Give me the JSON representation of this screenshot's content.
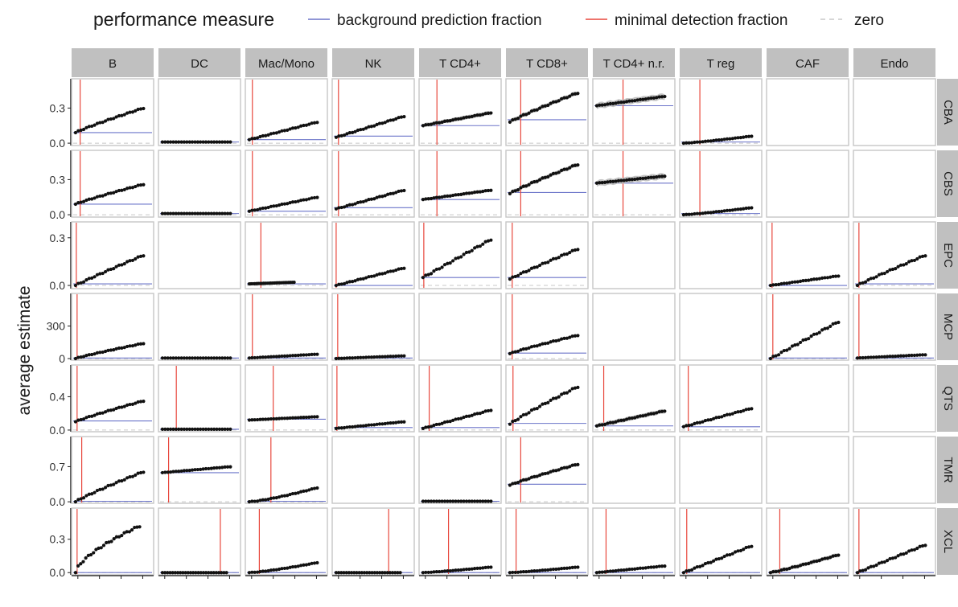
{
  "legend": {
    "title": "performance measure",
    "items": [
      {
        "label": "background prediction fraction",
        "color": "#6b74c9",
        "style": "solid"
      },
      {
        "label": "minimal detection fraction",
        "color": "#e8473c",
        "style": "solid"
      },
      {
        "label": "zero",
        "color": "#c8c8c8",
        "style": "dashed"
      }
    ]
  },
  "colors": {
    "strip_bg": "#c0c0c0",
    "panel_border": "#c6c6c6",
    "background_line": "#6b74c9",
    "detection_line": "#e8473c",
    "zero_line": "#c8c8c8",
    "points": "#111111",
    "ribbon": "#bdbdbd"
  },
  "chart_data": {
    "type": "scatter",
    "ylabel": "average estimate",
    "columns": [
      "B",
      "DC",
      "Mac/Mono",
      "NK",
      "T CD4+",
      "T CD8+",
      "T CD4+ n.r.",
      "T reg",
      "CAF",
      "Endo"
    ],
    "x_range": [
      0,
      1
    ],
    "rows": [
      {
        "name": "CBA",
        "yticks": [
          "0.0",
          "0.3"
        ],
        "tick_values": [
          0,
          0.3
        ],
        "ylim": [
          -0.02,
          0.55
        ],
        "panels": [
          {
            "col": "B",
            "bg": 0.09,
            "det": 0.08,
            "start": 0.09,
            "end": 0.3,
            "curve": 0.9,
            "x_end": 0.9,
            "ribbon": 0.006
          },
          {
            "col": "DC",
            "bg": 0.01,
            "start": 0.01,
            "end": 0.01,
            "x_end": 0.9,
            "ribbon": 0.003
          },
          {
            "col": "Mac/Mono",
            "bg": 0.03,
            "det": 0.06,
            "start": 0.03,
            "end": 0.18,
            "curve": 1.0,
            "x_end": 0.9,
            "ribbon": 0.005
          },
          {
            "col": "NK",
            "bg": 0.06,
            "det": 0.05,
            "start": 0.05,
            "end": 0.23,
            "curve": 1.0,
            "x_end": 0.9,
            "ribbon": 0.012
          },
          {
            "col": "T CD4+",
            "bg": 0.15,
            "det": 0.2,
            "start": 0.15,
            "end": 0.26,
            "curve": 1.0,
            "x_end": 0.9,
            "ribbon": 0.02
          },
          {
            "col": "T CD8+",
            "bg": 0.2,
            "det": 0.16,
            "start": 0.18,
            "end": 0.43,
            "curve": 0.9,
            "x_end": 0.9,
            "ribbon": 0.02
          },
          {
            "col": "T CD4+ n.r.",
            "bg": 0.32,
            "det": 0.36,
            "start": 0.32,
            "end": 0.4,
            "curve": 1.0,
            "x_end": 0.9,
            "ribbon": 0.03
          },
          {
            "col": "T reg",
            "bg": 0.01,
            "det": 0.23,
            "start": 0.0,
            "end": 0.06,
            "curve": 1.2,
            "x_end": 0.9,
            "ribbon": 0.006
          }
        ]
      },
      {
        "name": "CBS",
        "yticks": [
          "0.0",
          "0.3"
        ],
        "tick_values": [
          0,
          0.3
        ],
        "ylim": [
          -0.02,
          0.55
        ],
        "panels": [
          {
            "col": "B",
            "bg": 0.09,
            "det": 0.08,
            "start": 0.09,
            "end": 0.26,
            "curve": 0.9,
            "x_end": 0.9,
            "ribbon": 0.006
          },
          {
            "col": "DC",
            "bg": 0.01,
            "start": 0.01,
            "end": 0.01,
            "x_end": 0.9,
            "ribbon": 0.003
          },
          {
            "col": "Mac/Mono",
            "bg": 0.03,
            "det": 0.06,
            "start": 0.03,
            "end": 0.15,
            "curve": 1.0,
            "x_end": 0.9,
            "ribbon": 0.005
          },
          {
            "col": "NK",
            "bg": 0.06,
            "det": 0.05,
            "start": 0.05,
            "end": 0.21,
            "curve": 1.0,
            "x_end": 0.9,
            "ribbon": 0.012
          },
          {
            "col": "T CD4+",
            "bg": 0.13,
            "det": 0.2,
            "start": 0.13,
            "end": 0.21,
            "curve": 1.0,
            "x_end": 0.9,
            "ribbon": 0.015
          },
          {
            "col": "T CD8+",
            "bg": 0.19,
            "det": 0.16,
            "start": 0.18,
            "end": 0.43,
            "curve": 0.9,
            "x_end": 0.9,
            "ribbon": 0.02
          },
          {
            "col": "T CD4+ n.r.",
            "bg": 0.27,
            "det": 0.36,
            "start": 0.27,
            "end": 0.33,
            "curve": 1.0,
            "x_end": 0.9,
            "ribbon": 0.03
          },
          {
            "col": "T reg",
            "bg": 0.01,
            "det": 0.23,
            "start": 0.0,
            "end": 0.06,
            "curve": 1.2,
            "x_end": 0.9,
            "ribbon": 0.006
          }
        ]
      },
      {
        "name": "EPC",
        "yticks": [
          "0.0",
          "0.3"
        ],
        "tick_values": [
          0,
          0.3
        ],
        "ylim": [
          -0.02,
          0.4
        ],
        "panels": [
          {
            "col": "B",
            "bg": 0.01,
            "det": 0.03,
            "start": 0.0,
            "end": 0.19,
            "curve": 0.95,
            "x_end": 0.9,
            "ribbon": 0.004
          },
          {
            "col": "Mac/Mono",
            "bg": 0.01,
            "det": 0.17,
            "start": 0.01,
            "end": 0.02,
            "curve": 1.0,
            "x_end": 0.6,
            "ribbon": 0.003
          },
          {
            "col": "NK",
            "bg": 0.0,
            "det": 0.02,
            "start": 0.0,
            "end": 0.11,
            "curve": 1.0,
            "x_end": 0.9,
            "ribbon": 0.004
          },
          {
            "col": "T CD4+",
            "bg": 0.05,
            "det": 0.03,
            "start": 0.05,
            "end": 0.29,
            "curve": 1.0,
            "x_end": 0.9,
            "ribbon": 0.006
          },
          {
            "col": "T CD8+",
            "bg": 0.05,
            "det": 0.05,
            "start": 0.04,
            "end": 0.23,
            "curve": 0.95,
            "x_end": 0.9,
            "ribbon": 0.006
          },
          {
            "col": "CAF",
            "bg": 0.0,
            "det": 0.04,
            "start": 0.0,
            "end": 0.06,
            "curve": 1.0,
            "x_end": 0.9,
            "ribbon": 0.003
          },
          {
            "col": "Endo",
            "bg": 0.01,
            "det": 0.04,
            "start": 0.0,
            "end": 0.19,
            "curve": 0.95,
            "x_end": 0.9,
            "ribbon": 0.004
          }
        ]
      },
      {
        "name": "MCP",
        "yticks": [
          "0",
          "300"
        ],
        "tick_values": [
          0,
          300
        ],
        "ylim": [
          -15,
          600
        ],
        "panels": [
          {
            "col": "B",
            "bg": 5,
            "det": 0.04,
            "start": 0,
            "end": 140,
            "curve": 0.9,
            "x_end": 0.9,
            "ribbon": 3
          },
          {
            "col": "DC",
            "bg": 5,
            "start": 5,
            "end": 5,
            "x_end": 0.9,
            "ribbon": 2
          },
          {
            "col": "Mac/Mono",
            "bg": 5,
            "det": 0.06,
            "start": 5,
            "end": 40,
            "curve": 1.0,
            "x_end": 0.9,
            "ribbon": 3
          },
          {
            "col": "NK",
            "bg": 5,
            "det": 0.04,
            "start": 0,
            "end": 25,
            "curve": 1.0,
            "x_end": 0.9,
            "ribbon": 2
          },
          {
            "col": "T CD8+",
            "bg": 50,
            "det": 0.05,
            "start": 45,
            "end": 215,
            "curve": 0.9,
            "x_end": 0.9,
            "ribbon": 6
          },
          {
            "col": "CAF",
            "bg": 5,
            "det": 0.05,
            "start": 0,
            "end": 340,
            "curve": 1.0,
            "x_end": 0.9,
            "ribbon": 6
          },
          {
            "col": "Endo",
            "bg": 5,
            "det": 0.04,
            "start": 5,
            "end": 35,
            "curve": 1.0,
            "x_end": 0.9,
            "ribbon": 3
          }
        ]
      },
      {
        "name": "QTS",
        "yticks": [
          "0.0",
          "0.4"
        ],
        "tick_values": [
          0,
          0.4
        ],
        "ylim": [
          -0.02,
          0.78
        ],
        "panels": [
          {
            "col": "B",
            "bg": 0.11,
            "det": 0.04,
            "start": 0.1,
            "end": 0.35,
            "curve": 0.9,
            "x_end": 0.9,
            "ribbon": 0.008
          },
          {
            "col": "DC",
            "bg": 0.01,
            "det": 0.2,
            "start": 0.01,
            "end": 0.01,
            "x_end": 0.9,
            "ribbon": 0.004
          },
          {
            "col": "Mac/Mono",
            "bg": 0.13,
            "det": 0.33,
            "start": 0.12,
            "end": 0.16,
            "curve": 1.0,
            "x_end": 0.9,
            "ribbon": 0.02
          },
          {
            "col": "NK",
            "bg": 0.03,
            "det": 0.03,
            "start": 0.02,
            "end": 0.1,
            "curve": 1.0,
            "x_end": 0.9,
            "ribbon": 0.004
          },
          {
            "col": "T CD4+",
            "bg": 0.03,
            "det": 0.1,
            "start": 0.02,
            "end": 0.24,
            "curve": 1.0,
            "x_end": 0.9,
            "ribbon": 0.008
          },
          {
            "col": "T CD8+",
            "bg": 0.08,
            "det": 0.06,
            "start": 0.07,
            "end": 0.52,
            "curve": 0.9,
            "x_end": 0.9,
            "ribbon": 0.015
          },
          {
            "col": "T CD4+ n.r.",
            "bg": 0.05,
            "det": 0.11,
            "start": 0.05,
            "end": 0.23,
            "curve": 1.0,
            "x_end": 0.9,
            "ribbon": 0.03
          },
          {
            "col": "T reg",
            "bg": 0.04,
            "det": 0.08,
            "start": 0.04,
            "end": 0.26,
            "curve": 1.0,
            "x_end": 0.9,
            "ribbon": 0.008
          }
        ]
      },
      {
        "name": "TMR",
        "yticks": [
          "0.0",
          "0.7"
        ],
        "tick_values": [
          0,
          0.7
        ],
        "ylim": [
          -0.03,
          1.3
        ],
        "panels": [
          {
            "col": "B",
            "bg": 0.01,
            "det": 0.1,
            "start": 0.0,
            "end": 0.6,
            "curve": 0.9,
            "x_end": 0.9,
            "ribbon": 0.01
          },
          {
            "col": "DC",
            "bg": 0.58,
            "det": 0.1,
            "start": 0.58,
            "end": 0.7,
            "curve": 1.0,
            "x_end": 0.9,
            "ribbon": 0.02
          },
          {
            "col": "Mac/Mono",
            "bg": 0.01,
            "det": 0.3,
            "start": 0.0,
            "end": 0.28,
            "curve": 1.3,
            "x_end": 0.9,
            "ribbon": 0.01
          },
          {
            "col": "T CD4+",
            "bg": 0.01,
            "start": 0.01,
            "end": 0.01,
            "x_end": 0.9,
            "ribbon": 0.005
          },
          {
            "col": "T CD8+",
            "bg": 0.35,
            "det": 0.16,
            "start": 0.33,
            "end": 0.75,
            "curve": 0.9,
            "x_end": 0.9,
            "ribbon": 0.04
          }
        ]
      },
      {
        "name": "XCL",
        "yticks": [
          "0.0",
          "0.3"
        ],
        "tick_values": [
          0,
          0.3
        ],
        "ylim": [
          -0.02,
          0.58
        ],
        "panels": [
          {
            "col": "B",
            "bg": 0.0,
            "det": 0.04,
            "start": 0.0,
            "end": 0.42,
            "curve": 0.65,
            "x_end": 0.85,
            "ribbon": 0.008
          },
          {
            "col": "DC",
            "bg": 0.0,
            "det": 0.77,
            "start": 0.0,
            "end": 0.0,
            "x_end": 0.85,
            "ribbon": 0.003
          },
          {
            "col": "Mac/Mono",
            "bg": 0.0,
            "det": 0.15,
            "start": 0.0,
            "end": 0.09,
            "curve": 1.3,
            "x_end": 0.9,
            "ribbon": 0.004
          },
          {
            "col": "NK",
            "bg": 0.0,
            "det": 0.7,
            "start": 0.0,
            "end": 0.0,
            "x_end": 0.85,
            "ribbon": 0.003
          },
          {
            "col": "T CD4+",
            "bg": 0.0,
            "det": 0.35,
            "start": 0.0,
            "end": 0.05,
            "curve": 1.2,
            "x_end": 0.9,
            "ribbon": 0.003
          },
          {
            "col": "T CD8+",
            "bg": 0.0,
            "det": 0.1,
            "start": 0.0,
            "end": 0.05,
            "curve": 1.2,
            "x_end": 0.9,
            "ribbon": 0.003
          },
          {
            "col": "T CD4+ n.r.",
            "bg": 0.0,
            "det": 0.14,
            "start": 0.0,
            "end": 0.06,
            "curve": 1.0,
            "x_end": 0.9,
            "ribbon": 0.003
          },
          {
            "col": "T reg",
            "bg": 0.0,
            "det": 0.06,
            "start": 0.0,
            "end": 0.24,
            "curve": 1.0,
            "x_end": 0.9,
            "ribbon": 0.01
          },
          {
            "col": "CAF",
            "bg": 0.0,
            "det": 0.14,
            "start": 0.0,
            "end": 0.16,
            "curve": 1.1,
            "x_end": 0.9,
            "ribbon": 0.02
          },
          {
            "col": "Endo",
            "bg": 0.0,
            "det": 0.04,
            "start": 0.0,
            "end": 0.25,
            "curve": 1.0,
            "x_end": 0.9,
            "ribbon": 0.006
          }
        ]
      }
    ]
  }
}
